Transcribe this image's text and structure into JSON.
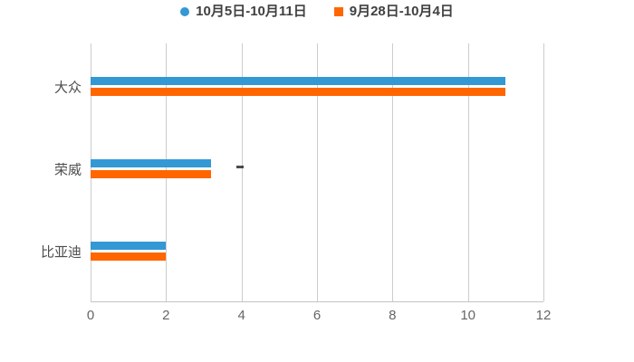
{
  "chart_data": {
    "type": "bar",
    "orientation": "horizontal",
    "title": "",
    "xlabel": "",
    "ylabel": "",
    "categories": [
      "大众",
      "荣威",
      "比亚迪"
    ],
    "series": [
      {
        "name": "10月5日-10月11日",
        "color": "#3398d4",
        "marker": "circle",
        "values": [
          11,
          3.2,
          2
        ]
      },
      {
        "name": "9月28日-10月4日",
        "color": "#ff6600",
        "marker": "square",
        "values": [
          11,
          3.2,
          2
        ]
      }
    ],
    "xlim": [
      0,
      12
    ],
    "x_ticks": [
      0,
      2,
      4,
      6,
      8,
      10,
      12
    ],
    "grid": true,
    "legend_position": "top"
  },
  "colors": {
    "background": "#ffffff",
    "grid": "#cccccc",
    "axis": "#c4c4c4",
    "tick_text": "#666666",
    "category_text": "#4d4d4d",
    "legend_text": "#404040"
  }
}
